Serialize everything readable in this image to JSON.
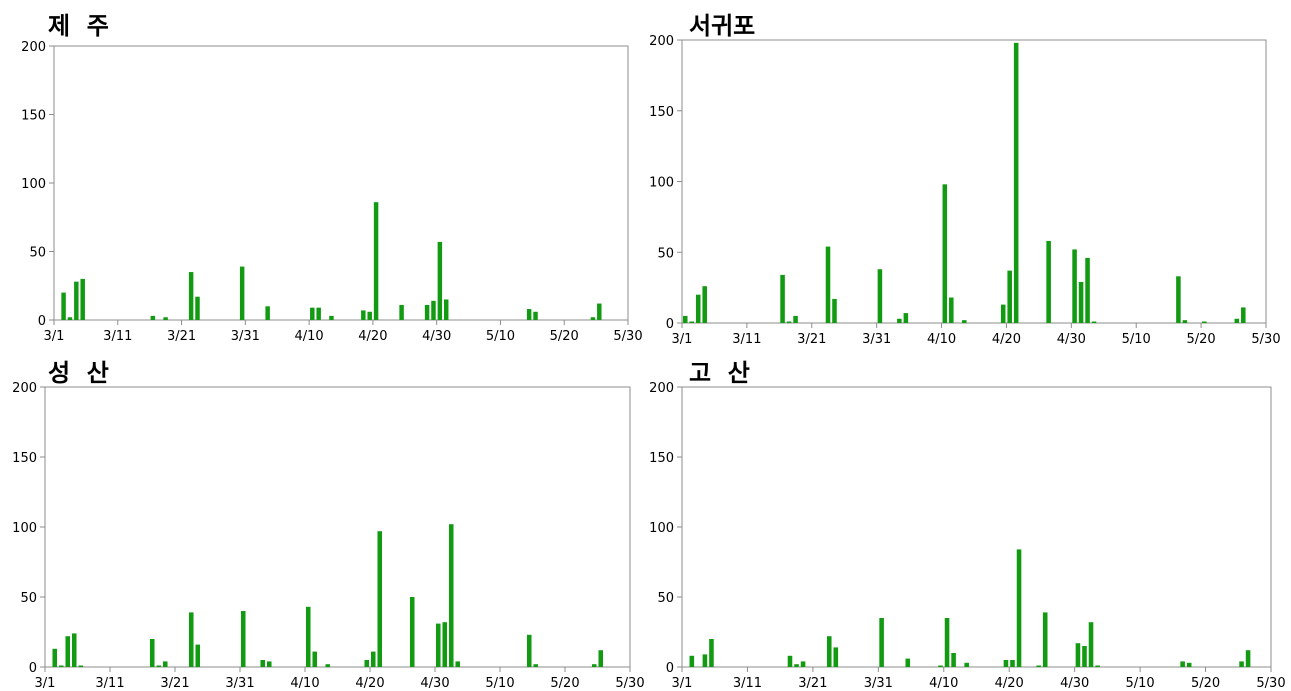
{
  "chart_data": [
    {
      "type": "bar",
      "title": "제  주",
      "x_ticks": [
        "3/1",
        "3/11",
        "3/21",
        "3/31",
        "4/10",
        "4/20",
        "4/30",
        "5/10",
        "5/20",
        "5/30"
      ],
      "y_ticks": [
        "0",
        "50",
        "100",
        "150",
        "200"
      ],
      "ylim": [
        0,
        200
      ],
      "x_range_days": [
        0,
        90
      ],
      "color": "#139a13",
      "bars": [
        [
          1,
          20
        ],
        [
          2,
          2
        ],
        [
          3,
          28
        ],
        [
          4,
          30
        ],
        [
          15,
          3
        ],
        [
          17,
          2
        ],
        [
          21,
          35
        ],
        [
          22,
          17
        ],
        [
          29,
          39
        ],
        [
          33,
          10
        ],
        [
          40,
          9
        ],
        [
          41,
          9
        ],
        [
          43,
          3
        ],
        [
          48,
          7
        ],
        [
          49,
          6
        ],
        [
          50,
          86
        ],
        [
          54,
          11
        ],
        [
          58,
          11
        ],
        [
          59,
          14
        ],
        [
          60,
          57
        ],
        [
          61,
          15
        ],
        [
          74,
          8
        ],
        [
          75,
          6
        ],
        [
          84,
          2
        ],
        [
          85,
          12
        ]
      ]
    },
    {
      "type": "bar",
      "title": "서귀포",
      "x_ticks": [
        "3/1",
        "3/11",
        "3/21",
        "3/31",
        "4/10",
        "4/20",
        "4/30",
        "5/10",
        "5/20",
        "5/30"
      ],
      "y_ticks": [
        "0",
        "50",
        "100",
        "150",
        "200"
      ],
      "ylim": [
        0,
        200
      ],
      "x_range_days": [
        0,
        90
      ],
      "color": "#139a13",
      "bars": [
        [
          0,
          5
        ],
        [
          1,
          1
        ],
        [
          2,
          20
        ],
        [
          3,
          26
        ],
        [
          15,
          34
        ],
        [
          16,
          1
        ],
        [
          17,
          5
        ],
        [
          22,
          54
        ],
        [
          23,
          17
        ],
        [
          30,
          38
        ],
        [
          33,
          3
        ],
        [
          34,
          7
        ],
        [
          40,
          98
        ],
        [
          41,
          18
        ],
        [
          43,
          2
        ],
        [
          49,
          13
        ],
        [
          50,
          37
        ],
        [
          51,
          198
        ],
        [
          56,
          58
        ],
        [
          60,
          52
        ],
        [
          61,
          29
        ],
        [
          62,
          46
        ],
        [
          63,
          1
        ],
        [
          76,
          33
        ],
        [
          77,
          2
        ],
        [
          80,
          1
        ],
        [
          85,
          3
        ],
        [
          86,
          11
        ]
      ]
    },
    {
      "type": "bar",
      "title": "성  산",
      "x_ticks": [
        "3/1",
        "3/11",
        "3/21",
        "3/31",
        "4/10",
        "4/20",
        "4/30",
        "5/10",
        "5/20",
        "5/30"
      ],
      "y_ticks": [
        "0",
        "50",
        "100",
        "150",
        "200"
      ],
      "ylim": [
        0,
        200
      ],
      "x_range_days": [
        0,
        90
      ],
      "color": "#139a13",
      "bars": [
        [
          1,
          13
        ],
        [
          2,
          1
        ],
        [
          3,
          22
        ],
        [
          4,
          24
        ],
        [
          5,
          1
        ],
        [
          16,
          20
        ],
        [
          17,
          1
        ],
        [
          18,
          4
        ],
        [
          22,
          39
        ],
        [
          23,
          16
        ],
        [
          30,
          40
        ],
        [
          33,
          5
        ],
        [
          34,
          4
        ],
        [
          40,
          43
        ],
        [
          41,
          11
        ],
        [
          43,
          2
        ],
        [
          49,
          5
        ],
        [
          50,
          11
        ],
        [
          51,
          97
        ],
        [
          56,
          50
        ],
        [
          60,
          31
        ],
        [
          61,
          32
        ],
        [
          62,
          102
        ],
        [
          63,
          4
        ],
        [
          74,
          23
        ],
        [
          75,
          2
        ],
        [
          84,
          2
        ],
        [
          85,
          12
        ]
      ]
    },
    {
      "type": "bar",
      "title": "고  산",
      "x_ticks": [
        "3/1",
        "3/11",
        "3/21",
        "3/31",
        "4/10",
        "4/20",
        "4/30",
        "5/10",
        "5/20",
        "5/30"
      ],
      "y_ticks": [
        "0",
        "50",
        "100",
        "150",
        "200"
      ],
      "ylim": [
        0,
        200
      ],
      "x_range_days": [
        0,
        90
      ],
      "color": "#139a13",
      "bars": [
        [
          1,
          8
        ],
        [
          3,
          9
        ],
        [
          4,
          20
        ],
        [
          16,
          8
        ],
        [
          17,
          2
        ],
        [
          18,
          4
        ],
        [
          22,
          22
        ],
        [
          23,
          14
        ],
        [
          30,
          35
        ],
        [
          34,
          6
        ],
        [
          39,
          1
        ],
        [
          40,
          35
        ],
        [
          41,
          10
        ],
        [
          43,
          3
        ],
        [
          49,
          5
        ],
        [
          50,
          5
        ],
        [
          51,
          84
        ],
        [
          54,
          1
        ],
        [
          55,
          39
        ],
        [
          60,
          17
        ],
        [
          61,
          15
        ],
        [
          62,
          32
        ],
        [
          63,
          1
        ],
        [
          76,
          4
        ],
        [
          77,
          3
        ],
        [
          85,
          4
        ],
        [
          86,
          12
        ]
      ]
    }
  ]
}
